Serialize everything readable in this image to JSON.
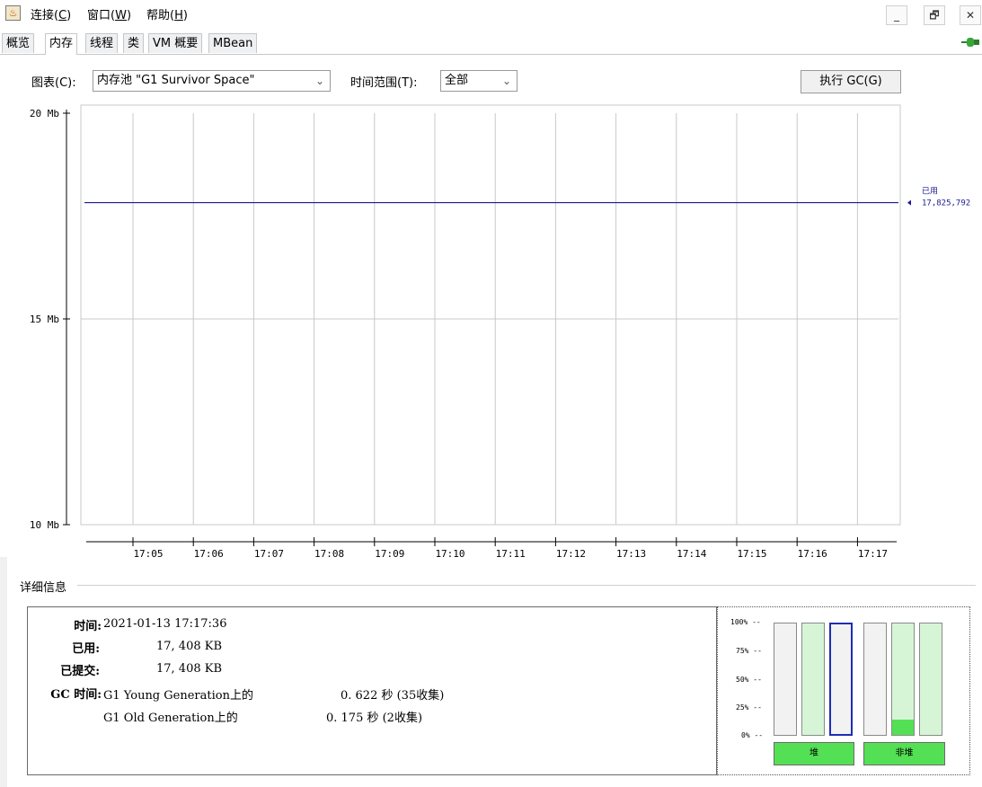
{
  "menubar": {
    "items": [
      {
        "label": "连接(",
        "key": "C",
        "end": ")"
      },
      {
        "label": "窗口(",
        "key": "W",
        "end": ")"
      },
      {
        "label": "帮助(",
        "key": "H",
        "end": ")"
      }
    ],
    "window_buttons": [
      "_",
      "🗗",
      "✕"
    ]
  },
  "tabs": [
    {
      "label": "概览",
      "active": false
    },
    {
      "label": "内存",
      "active": true
    },
    {
      "label": "线程",
      "active": false
    },
    {
      "label": "类",
      "active": false
    },
    {
      "label": "VM 概要",
      "active": false
    },
    {
      "label": "MBean",
      "active": false
    }
  ],
  "controls": {
    "chart_label": "图表(C):",
    "chart_select": "内存池 \"G1 Survivor Space\"",
    "range_label": "时间范围(T):",
    "range_select": "全部",
    "gc_button": "执行 GC(G)"
  },
  "chart_data": {
    "type": "line",
    "y_ticks": [
      "20 Mb",
      "15 Mb",
      "10 Mb"
    ],
    "ylim": [
      10,
      20
    ],
    "x_ticks": [
      "17:05",
      "17:06",
      "17:07",
      "17:08",
      "17:09",
      "17:10",
      "17:11",
      "17:12",
      "17:13",
      "17:14",
      "17:15",
      "17:16",
      "17:17"
    ],
    "series": [
      {
        "name": "已用",
        "value_label": "17,825,792",
        "color": "#1a1a8c",
        "y_mb": 17.825792
      }
    ],
    "grid": true,
    "legend": "right"
  },
  "details": {
    "section_title": "详细信息",
    "time_label": "时间:",
    "time_value": "2021-01-13 17:17:36",
    "used_label": "已用:",
    "used_value": "17, 408 KB",
    "committed_label": "已提交:",
    "committed_value": "17, 408 KB",
    "gc_label": "GC 时间:",
    "gc_rows": [
      {
        "name": "G1 Young Generation上的",
        "value": "0. 622 秒 (35收集)"
      },
      {
        "name": "G1 Old Generation上的",
        "value": "0. 175 秒 (2收集)"
      }
    ]
  },
  "pool_bars": {
    "pct_labels": [
      "100% --",
      "75% --",
      "50% --",
      "25% --",
      "0% --"
    ],
    "heap_label": "堆",
    "nonheap_label": "非堆",
    "heap": [
      {
        "fill": 0,
        "green": false,
        "selected": false
      },
      {
        "fill": 0,
        "green": true,
        "selected": false
      },
      {
        "fill": 0,
        "green": false,
        "selected": true
      }
    ],
    "nonheap": [
      {
        "fill": 0,
        "green": false,
        "selected": false
      },
      {
        "fill": 0.14,
        "green": true,
        "selected": false
      },
      {
        "fill": 0,
        "green": true,
        "selected": false
      }
    ]
  }
}
